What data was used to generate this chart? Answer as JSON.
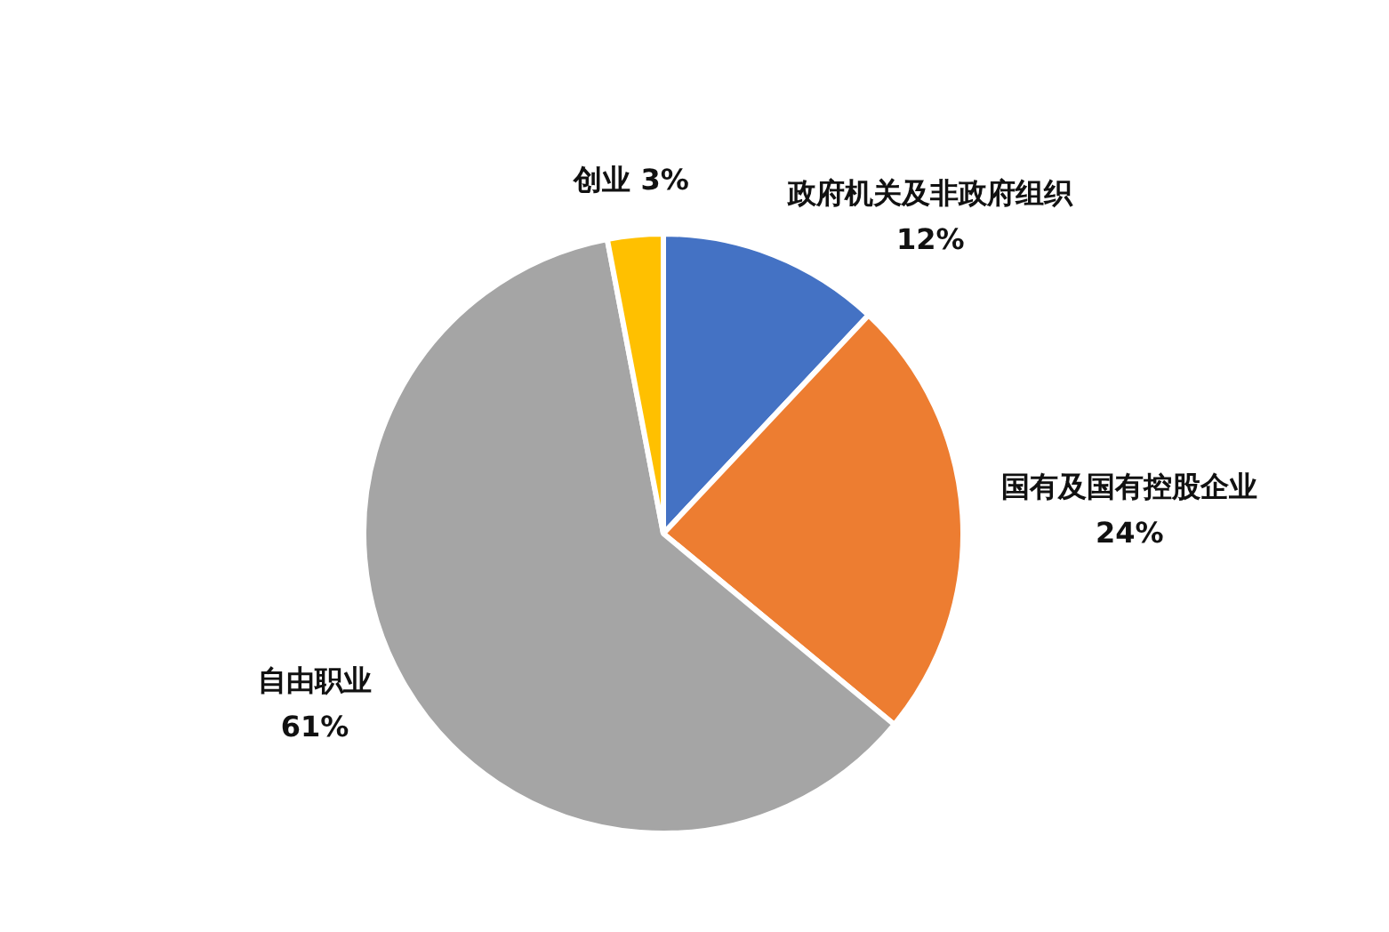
{
  "chart_data": {
    "type": "pie",
    "categories": [
      "政府机关及非政府组织",
      "国有及国有控股企业",
      "自由职业",
      "创业"
    ],
    "values": [
      12,
      24,
      61,
      3
    ],
    "value_labels": [
      "12%",
      "24%",
      "61%",
      "3%"
    ],
    "colors": [
      "#4472c4",
      "#ed7d31",
      "#a5a5a5",
      "#ffc000"
    ],
    "legend": false
  }
}
